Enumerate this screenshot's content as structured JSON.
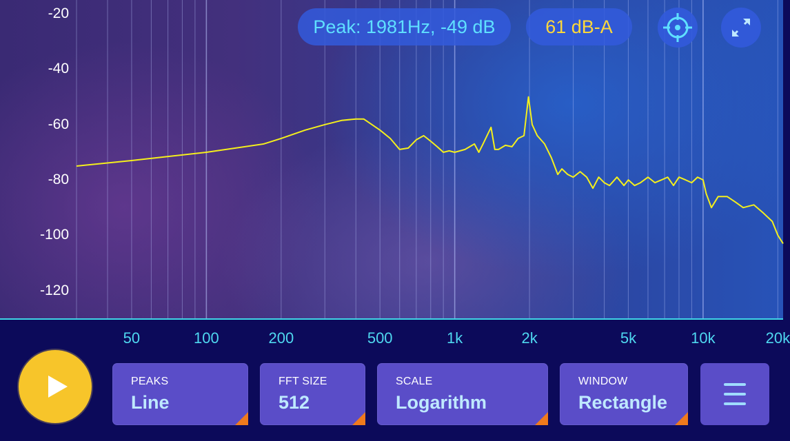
{
  "header": {
    "peak_readout": "Peak: 1981Hz, -49 dB",
    "level_readout": "61 dB-A",
    "target_icon": "crosshair-icon",
    "resize_icon": "resize-diagonal-icon"
  },
  "controls": {
    "play_icon": "play-icon",
    "peaks": {
      "label": "PEAKS",
      "value": "Line"
    },
    "fft_size": {
      "label": "FFT SIZE",
      "value": "512"
    },
    "scale": {
      "label": "SCALE",
      "value": "Logarithm"
    },
    "window": {
      "label": "WINDOW",
      "value": "Rectangle"
    },
    "menu_icon": "hamburger-menu-icon"
  },
  "colors": {
    "trace": "#f5f01c",
    "accent_cyan": "#3fd6e6",
    "play": "#f7c52a",
    "panel": "#5a4dc8",
    "corner": "#f07a1c"
  },
  "chart_data": {
    "type": "line",
    "xscale": "log",
    "xlim": [
      30,
      21000
    ],
    "ylim": [
      -130,
      -15
    ],
    "x_ticks": [
      {
        "value": 50,
        "label": "50"
      },
      {
        "value": 100,
        "label": "100"
      },
      {
        "value": 200,
        "label": "200"
      },
      {
        "value": 500,
        "label": "500"
      },
      {
        "value": 1000,
        "label": "1k"
      },
      {
        "value": 2000,
        "label": "2k"
      },
      {
        "value": 5000,
        "label": "5k"
      },
      {
        "value": 10000,
        "label": "10k"
      },
      {
        "value": 20000,
        "label": "20k"
      }
    ],
    "y_ticks": [
      {
        "value": -20,
        "label": "-20"
      },
      {
        "value": -40,
        "label": "-40"
      },
      {
        "value": -60,
        "label": "-60"
      },
      {
        "value": -80,
        "label": "-80"
      },
      {
        "value": -100,
        "label": "-100"
      },
      {
        "value": -120,
        "label": "-120"
      }
    ],
    "grid_x": [
      30,
      40,
      50,
      60,
      70,
      80,
      90,
      100,
      200,
      300,
      400,
      500,
      600,
      700,
      800,
      900,
      1000,
      2000,
      3000,
      4000,
      5000,
      6000,
      7000,
      8000,
      9000,
      10000,
      20000
    ],
    "series": [
      {
        "x": [
          30,
          50,
          100,
          170,
          200,
          250,
          300,
          350,
          400,
          430,
          500,
          550,
          600,
          650,
          700,
          750,
          800,
          850,
          900,
          950,
          1000,
          1100,
          1200,
          1250,
          1300,
          1400,
          1450,
          1500,
          1600,
          1700,
          1800,
          1900,
          1981,
          2050,
          2150,
          2300,
          2450,
          2600,
          2700,
          2850,
          3000,
          3200,
          3400,
          3600,
          3800,
          4000,
          4200,
          4500,
          4800,
          5000,
          5300,
          5600,
          6000,
          6400,
          6800,
          7200,
          7600,
          8000,
          8500,
          9000,
          9500,
          10000,
          10300,
          10800,
          11500,
          12500,
          13500,
          14500,
          16000,
          17500,
          19000,
          20000,
          21000
        ],
        "y": [
          -75,
          -73,
          -70,
          -67,
          -65,
          -62,
          -60,
          -58.5,
          -58,
          -58,
          -62,
          -65,
          -69,
          -68.5,
          -65.5,
          -64,
          -66,
          -68,
          -70,
          -69.5,
          -70,
          -69,
          -67,
          -70,
          -67,
          -61,
          -69,
          -69,
          -67.5,
          -68,
          -65,
          -64,
          -50,
          -60,
          -64,
          -67,
          -72,
          -78,
          -76,
          -78,
          -79,
          -77,
          -79,
          -83,
          -79,
          -81,
          -82,
          -79,
          -82,
          -80,
          -82,
          -81,
          -79,
          -81,
          -80,
          -79,
          -82,
          -79,
          -80,
          -81,
          -79,
          -80,
          -85,
          -90,
          -86,
          -86,
          -88,
          -90,
          -89,
          -92,
          -95,
          -100,
          -103
        ]
      }
    ]
  }
}
